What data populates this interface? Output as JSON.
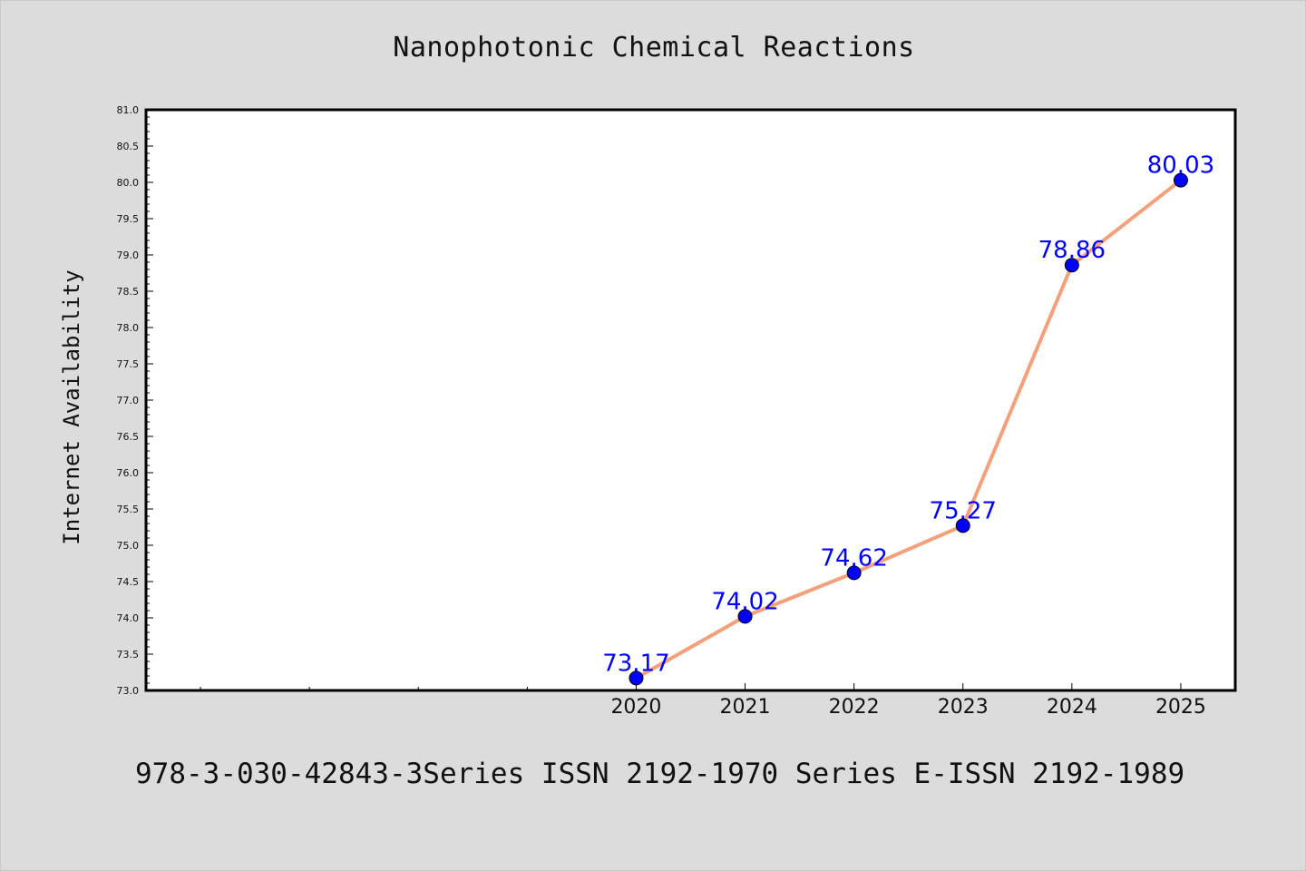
{
  "title": "Nanophotonic Chemical Reactions",
  "footer_text": "978-3-030-42843-3Series ISSN 2192-1970 Series E-ISSN 2192-1989",
  "chart_data": {
    "type": "line",
    "title": "Nanophotonic Chemical Reactions",
    "xlabel": "",
    "ylabel": "Internet Availability",
    "x": [
      2020,
      2021,
      2022,
      2023,
      2024,
      2025
    ],
    "x_tick_labels": [
      "2020",
      "2021",
      "2022",
      "2023",
      "2024",
      "2025"
    ],
    "xlim": [
      2015.5,
      2025.5
    ],
    "series": [
      {
        "values": [
          73.17,
          74.02,
          74.62,
          75.27,
          78.86,
          80.03
        ],
        "labels": [
          "73.17",
          "74.02",
          "74.62",
          "75.27",
          "78.86",
          "80.03"
        ]
      }
    ],
    "ylim": [
      73.0,
      81.0
    ],
    "y_ticks": [
      "73.0",
      "73.5",
      "74.0",
      "74.5",
      "75.0",
      "75.5",
      "76.0",
      "76.5",
      "77.0",
      "77.5",
      "78.0",
      "78.5",
      "79.0",
      "79.5",
      "80.0",
      "80.5",
      "81.0"
    ],
    "grid": false,
    "legend": "none",
    "colors": {
      "line": "#f4a07a",
      "marker": "#0000ff",
      "marker_edge": "#000000",
      "data_label": "#0000ff",
      "plot_background": "#ffffff",
      "page_background": "#dcdcdc"
    }
  }
}
